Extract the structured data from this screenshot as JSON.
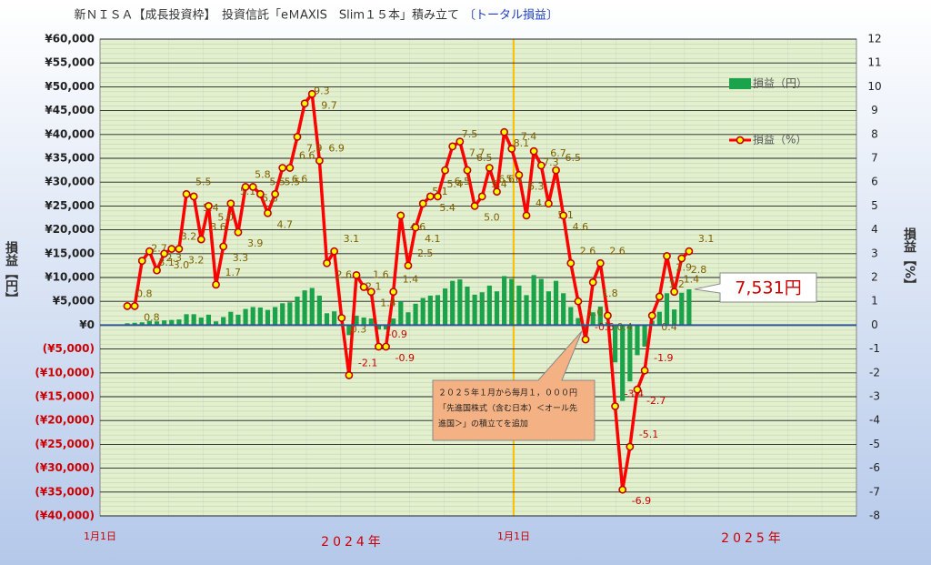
{
  "chart_data": {
    "type": "bar-line",
    "title": "新ＮＩＳＡ【成長投資枠】　投資信託「eＭAXIS　Slim１５本」積み立て",
    "title_highlight": "〔トータル損益〕",
    "y_label": "損益【円】",
    "y2_label": "損益【%】",
    "x_labels": [
      "1月1日",
      "1月1日"
    ],
    "x_group_labels": [
      "2024年",
      "2025年"
    ],
    "ylim": [
      -40000,
      60000
    ],
    "yticks": [
      {
        "value": -40000,
        "label": "(¥40,000)"
      },
      {
        "value": -35000,
        "label": "(¥35,000)"
      },
      {
        "value": -30000,
        "label": "(¥30,000)"
      },
      {
        "value": -25000,
        "label": "(¥25,000)"
      },
      {
        "value": -20000,
        "label": "(¥20,000)"
      },
      {
        "value": -15000,
        "label": "(¥15,000)"
      },
      {
        "value": -10000,
        "label": "(¥10,000)"
      },
      {
        "value": -5000,
        "label": "(¥5,000)"
      },
      {
        "value": 0,
        "label": "¥0"
      },
      {
        "value": 5000,
        "label": "¥5,000"
      },
      {
        "value": 10000,
        "label": "¥10,000"
      },
      {
        "value": 15000,
        "label": "¥15,000"
      },
      {
        "value": 20000,
        "label": "¥20,000"
      },
      {
        "value": 25000,
        "label": "¥25,000"
      },
      {
        "value": 30000,
        "label": "¥30,000"
      },
      {
        "value": 35000,
        "label": "¥35,000"
      },
      {
        "value": 40000,
        "label": "¥40,000"
      },
      {
        "value": 45000,
        "label": "¥45,000"
      },
      {
        "value": 50000,
        "label": "¥50,000"
      },
      {
        "value": 55000,
        "label": "¥55,000"
      },
      {
        "value": 60000,
        "label": "¥60,000"
      }
    ],
    "y2lim": [
      -8,
      12
    ],
    "y2ticks": [
      -8,
      -7,
      -6,
      -5,
      -4,
      -3,
      -2,
      -1,
      0,
      1,
      2,
      3,
      4,
      5,
      6,
      7,
      8,
      9,
      10,
      11,
      12
    ],
    "grid": true,
    "legend": "upper right",
    "series": [
      {
        "name": "損益（円）",
        "type": "bar",
        "color": "#1aa34a",
        "values": [
          400,
          500,
          600,
          900,
          800,
          1000,
          1100,
          1200,
          2300,
          2300,
          1600,
          2200,
          800,
          1700,
          2800,
          2200,
          3400,
          3800,
          3700,
          3200,
          3800,
          4600,
          4800,
          6000,
          7300,
          7800,
          6200,
          2500,
          2900,
          300,
          -2100,
          2000,
          1600,
          1400,
          -900,
          -900,
          1400,
          5000,
          2700,
          4500,
          5700,
          6200,
          6300,
          7700,
          9300,
          9600,
          8100,
          6400,
          6900,
          8300,
          7100,
          10300,
          9700,
          8300,
          6300,
          10500,
          9700,
          7100,
          9300,
          6700,
          3800,
          1500,
          -900,
          2700,
          3900,
          600,
          -7800,
          -15900,
          -11800,
          -6300,
          -4500,
          900,
          2800,
          6700,
          3300,
          6800,
          7531
        ]
      },
      {
        "name": "損益（%）",
        "type": "line",
        "axis": "y2",
        "color": "#ff0000",
        "values": [
          0.8,
          0.8,
          2.7,
          3.1,
          2.3,
          3,
          3.2,
          3.2,
          5.5,
          5.4,
          3.6,
          5,
          1.7,
          3.3,
          5.1,
          3.9,
          5.8,
          5.8,
          5.5,
          4.7,
          5.5,
          6.6,
          6.6,
          7.9,
          9.3,
          9.7,
          6.9,
          2.6,
          3.1,
          0.3,
          -2.1,
          2.1,
          1.6,
          1.4,
          -0.9,
          -0.9,
          1.4,
          4.6,
          2.5,
          4.1,
          5.1,
          5.4,
          5.4,
          6.5,
          7.5,
          7.7,
          6.5,
          5,
          5.4,
          6.6,
          5.6,
          8.1,
          7.4,
          6.3,
          4.6,
          7.3,
          6.7,
          5.1,
          6.5,
          4.6,
          2.6,
          1,
          -0.6,
          1.8,
          2.6,
          0.4,
          -3.4,
          -6.9,
          -5.1,
          -2.7,
          -1.9,
          0.4,
          1.2,
          2.9,
          1.4,
          2.8,
          3.1
        ],
        "value_labels": [
          "0.8",
          "0.8",
          "2.7",
          "3.1",
          "2.3",
          "3.0",
          "3.2",
          "3.2",
          "5.5",
          "5.4",
          "3.6",
          "5.0",
          "1.7",
          "3.3",
          "5.1",
          "3.9",
          "5.8",
          "5.8",
          "5.5",
          "4.7",
          "5.5",
          "6.6",
          "6.6",
          "7.9",
          "9.3",
          "9.7",
          "6.9",
          "2.6",
          "3.1",
          "0.3",
          "-2.1",
          "2.1",
          "1.6",
          "1.4",
          "-0.9",
          "-0.9",
          "1.4",
          "4.6",
          "2.5",
          "4.1",
          "5.1",
          "5.4",
          "5.4",
          "6.5",
          "7.5",
          "7.7",
          "6.5",
          "5.0",
          "5.4",
          "6.6",
          "5.6",
          "8.1",
          "7.4",
          "6.3",
          "4.6",
          "7.3",
          "6.7",
          "5.1",
          "6.5",
          "4.6",
          "2.6",
          "1.0",
          "-0.6",
          "1.8",
          "2.6",
          "0.4",
          "-3.4",
          "-6.9",
          "-5.1",
          "-2.7",
          "-1.9",
          "0.4",
          "1.2",
          "2.9",
          "1.4",
          "2.8",
          "3.1"
        ]
      }
    ],
    "callout": {
      "value": 7531,
      "label": "7,531円"
    },
    "annotation": [
      "２０２５年１月から毎月１，０００円",
      "「先進国株式（含む日本）＜オール先",
      "進国＞」の積立てを追加"
    ]
  }
}
